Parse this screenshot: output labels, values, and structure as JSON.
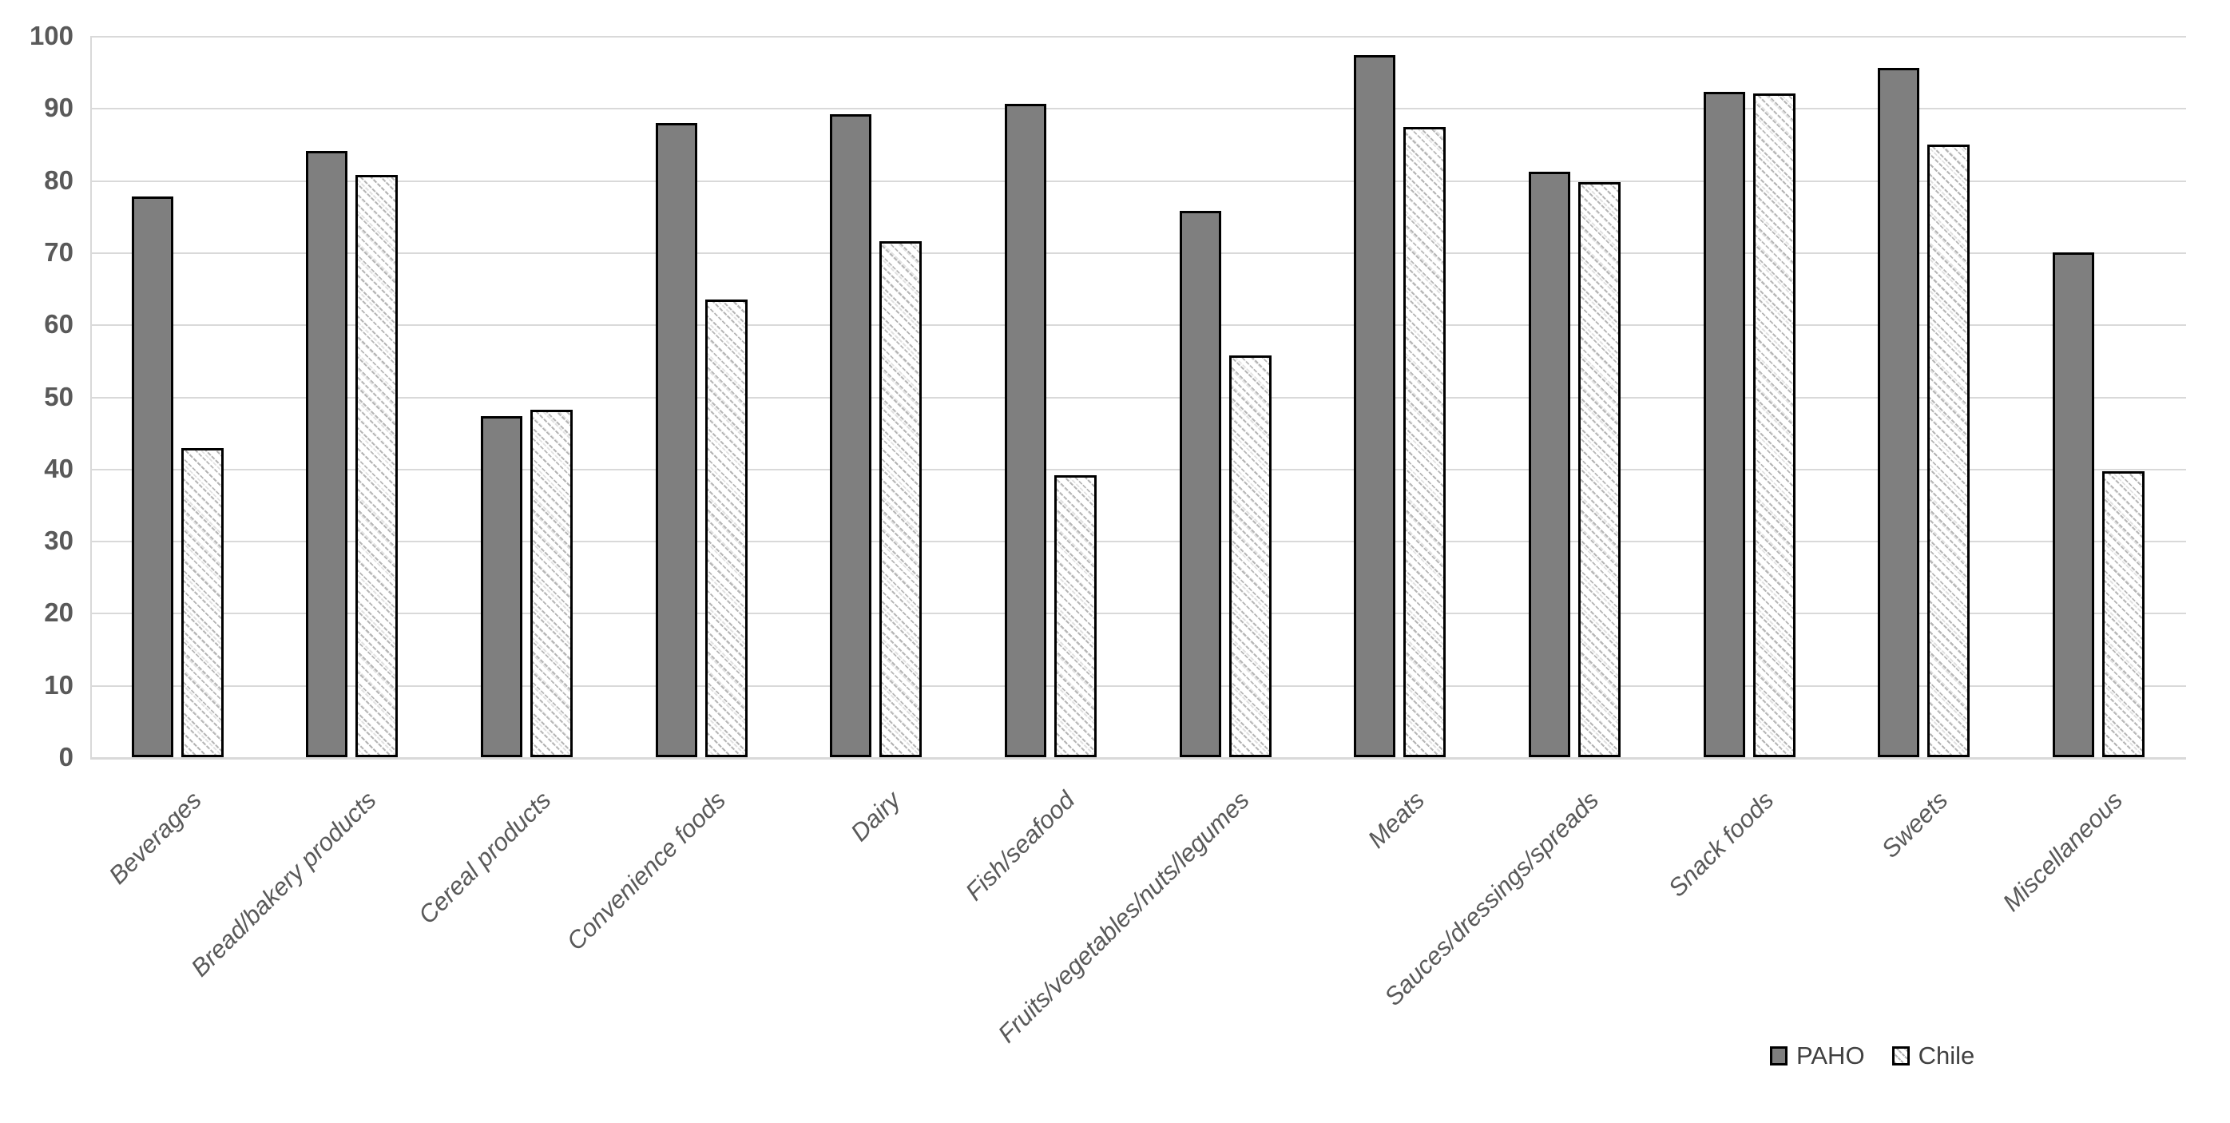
{
  "chart_data": {
    "type": "bar",
    "title": "",
    "xlabel": "",
    "ylabel": "",
    "categories": [
      "Beverages",
      "Bread/bakery products",
      "Cereal products",
      "Convenience foods",
      "Dairy",
      "Fish/seafood",
      "Fruits/vegetables/nuts/legumes",
      "Meats",
      "Sauces/dressings/spreads",
      "Snack foods",
      "Sweets",
      "Miscellaneous"
    ],
    "series": [
      {
        "name": "PAHO",
        "values": [
          77.7,
          84.0,
          47.3,
          87.9,
          89.1,
          90.6,
          75.7,
          97.3,
          81.2,
          92.3,
          95.6,
          70.0
        ]
      },
      {
        "name": "Chile",
        "values": [
          42.9,
          80.7,
          48.2,
          63.5,
          71.5,
          39.1,
          55.7,
          87.4,
          79.7,
          92.0,
          84.9,
          39.6
        ]
      }
    ],
    "ylim": [
      0,
      100
    ],
    "y_ticks": [
      100,
      90,
      80,
      70,
      60,
      50,
      40,
      30,
      20,
      10,
      0
    ],
    "grid": "horizontal",
    "legend_position": "bottom-right",
    "colors": {
      "paho_fill": "#7f7f7f",
      "chile_fill": "#ffffff",
      "chile_hatch": "#aaaaaa",
      "bar_border": "#000000",
      "gridline": "#d9d9d9",
      "axis_text": "#595959",
      "legend_text": "#404040"
    }
  },
  "legend": {
    "items": [
      {
        "label": "PAHO"
      },
      {
        "label": "Chile"
      }
    ]
  }
}
